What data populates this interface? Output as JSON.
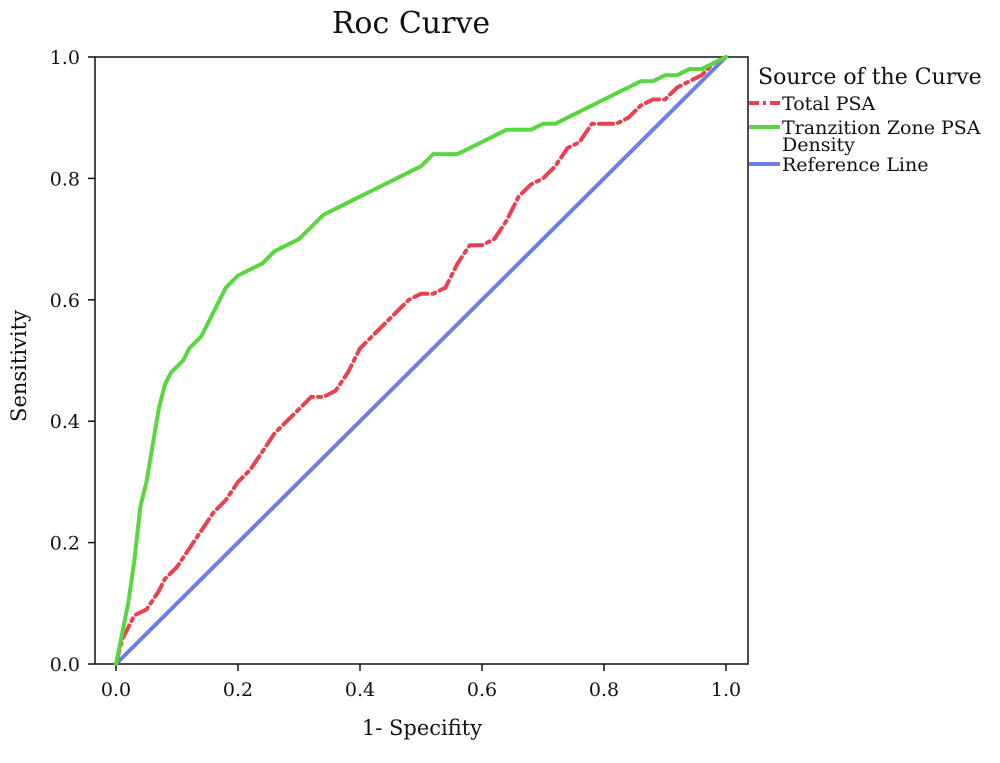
{
  "chart_data": {
    "type": "line",
    "title": "Roc Curve",
    "xlabel": "1- Specifity",
    "ylabel": "Sensitivity",
    "xlim": [
      0.0,
      1.0
    ],
    "ylim": [
      0.0,
      1.0
    ],
    "xticks": [
      "0.0",
      "0.2",
      "0.4",
      "0.6",
      "0.8",
      "1.0"
    ],
    "yticks": [
      "0.0",
      "0.2",
      "0.4",
      "0.6",
      "0.8",
      "1.0"
    ],
    "grid": false,
    "legend": {
      "title": "Source of the Curve",
      "placement": "right",
      "entries": [
        {
          "lines": [
            "Total PSA"
          ],
          "color": "#e8414f"
        },
        {
          "lines": [
            "Tranzition Zone PSA",
            "Density"
          ],
          "color": "#59d640"
        },
        {
          "lines": [
            "Reference Line"
          ],
          "color": "#6c7fe6"
        }
      ]
    },
    "series": [
      {
        "name": "Total PSA",
        "color": "#e8414f",
        "style": "dashdot",
        "x": [
          0.0,
          0.01,
          0.02,
          0.03,
          0.05,
          0.07,
          0.08,
          0.1,
          0.12,
          0.14,
          0.16,
          0.18,
          0.2,
          0.22,
          0.24,
          0.26,
          0.28,
          0.3,
          0.32,
          0.34,
          0.36,
          0.38,
          0.4,
          0.42,
          0.44,
          0.46,
          0.48,
          0.5,
          0.52,
          0.54,
          0.56,
          0.58,
          0.6,
          0.62,
          0.64,
          0.66,
          0.68,
          0.7,
          0.72,
          0.74,
          0.76,
          0.78,
          0.8,
          0.82,
          0.84,
          0.86,
          0.88,
          0.9,
          0.92,
          0.94,
          0.96,
          0.98,
          1.0
        ],
        "y": [
          0.0,
          0.04,
          0.06,
          0.08,
          0.09,
          0.12,
          0.14,
          0.16,
          0.19,
          0.22,
          0.25,
          0.27,
          0.3,
          0.32,
          0.35,
          0.38,
          0.4,
          0.42,
          0.44,
          0.44,
          0.45,
          0.48,
          0.52,
          0.54,
          0.56,
          0.58,
          0.6,
          0.61,
          0.61,
          0.62,
          0.66,
          0.69,
          0.69,
          0.7,
          0.73,
          0.77,
          0.79,
          0.8,
          0.82,
          0.85,
          0.86,
          0.89,
          0.89,
          0.89,
          0.9,
          0.92,
          0.93,
          0.93,
          0.95,
          0.96,
          0.97,
          0.99,
          1.0
        ]
      },
      {
        "name": "Tranzition Zone PSA Density",
        "color": "#59d640",
        "style": "solid",
        "x": [
          0.0,
          0.01,
          0.02,
          0.03,
          0.04,
          0.05,
          0.06,
          0.07,
          0.08,
          0.09,
          0.1,
          0.11,
          0.12,
          0.13,
          0.14,
          0.15,
          0.16,
          0.17,
          0.18,
          0.19,
          0.2,
          0.22,
          0.24,
          0.26,
          0.28,
          0.3,
          0.32,
          0.34,
          0.36,
          0.38,
          0.4,
          0.42,
          0.44,
          0.46,
          0.48,
          0.5,
          0.52,
          0.54,
          0.56,
          0.58,
          0.6,
          0.62,
          0.64,
          0.66,
          0.68,
          0.7,
          0.72,
          0.74,
          0.76,
          0.78,
          0.8,
          0.82,
          0.84,
          0.86,
          0.88,
          0.9,
          0.92,
          0.94,
          0.96,
          0.98,
          1.0
        ],
        "y": [
          0.0,
          0.05,
          0.1,
          0.17,
          0.26,
          0.3,
          0.36,
          0.42,
          0.46,
          0.48,
          0.49,
          0.5,
          0.52,
          0.53,
          0.54,
          0.56,
          0.58,
          0.6,
          0.62,
          0.63,
          0.64,
          0.65,
          0.66,
          0.68,
          0.69,
          0.7,
          0.72,
          0.74,
          0.75,
          0.76,
          0.77,
          0.78,
          0.79,
          0.8,
          0.81,
          0.82,
          0.84,
          0.84,
          0.84,
          0.85,
          0.86,
          0.87,
          0.88,
          0.88,
          0.88,
          0.89,
          0.89,
          0.9,
          0.91,
          0.92,
          0.93,
          0.94,
          0.95,
          0.96,
          0.96,
          0.97,
          0.97,
          0.98,
          0.98,
          0.99,
          1.0
        ]
      },
      {
        "name": "Reference Line",
        "color": "#6c7fe6",
        "style": "solid",
        "x": [
          0.0,
          1.0
        ],
        "y": [
          0.0,
          1.0
        ]
      }
    ]
  }
}
